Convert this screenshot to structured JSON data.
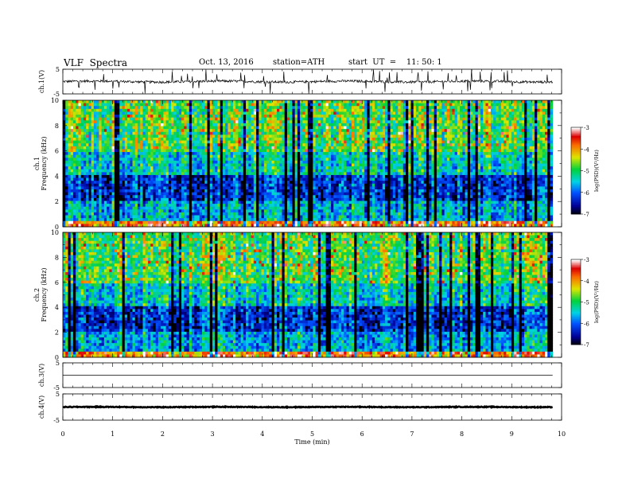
{
  "header": {
    "title": "VLF  Spectra",
    "date": "Oct. 13, 2016",
    "station": "station=ATH",
    "start": "start  UT  =    11: 50: 1"
  },
  "chart_data": [
    {
      "type": "line",
      "id": "ch1-waveform",
      "ylabel": "ch.1(V)",
      "ylim": [
        -5,
        5
      ],
      "y_ticks": [
        "5",
        "-5"
      ],
      "xlim": [
        0,
        10
      ],
      "baseline": 0,
      "noise_amplitude": 0.5,
      "series_end": 9.82
    },
    {
      "type": "heatmap",
      "id": "ch1-spectrogram",
      "ylabel": "ch.1\nFrequency  (kHz)",
      "ylabel_lines": [
        "ch.1",
        "Frequency  (kHz)"
      ],
      "ylim": [
        0,
        10
      ],
      "y_ticks": [
        "0",
        "2",
        "4",
        "6",
        "8",
        "10"
      ],
      "xlim": [
        0,
        10
      ],
      "colorbar": {
        "label": "log(PSD)(V²/Hz)",
        "ticks": [
          "-3",
          "-4",
          "-5",
          "-6",
          "-7"
        ],
        "range": [
          -7,
          -3
        ]
      }
    },
    {
      "type": "heatmap",
      "id": "ch2-spectrogram",
      "ylabel": "ch.2\nFrequency  (kHz)",
      "ylabel_lines": [
        "ch.2",
        "Frequency  (kHz)"
      ],
      "ylim": [
        0,
        10
      ],
      "y_ticks": [
        "0",
        "2",
        "4",
        "6",
        "8",
        "10"
      ],
      "xlim": [
        0,
        10
      ],
      "colorbar": {
        "label": "log(PSD)(V²/Hz)",
        "ticks": [
          "-3",
          "-4",
          "-5",
          "-6",
          "-7"
        ],
        "range": [
          -7,
          -3
        ]
      }
    },
    {
      "type": "line",
      "id": "ch3-waveform",
      "ylabel": "ch.3(V)",
      "ylim": [
        -5,
        5
      ],
      "y_ticks": [
        "5",
        "-5"
      ],
      "xlim": [
        0,
        10
      ],
      "baseline": 0,
      "noise_amplitude": 0.0,
      "series_end": 9.82
    },
    {
      "type": "line",
      "id": "ch4-waveform",
      "ylabel": "ch.4(V)",
      "ylim": [
        -5,
        5
      ],
      "y_ticks": [
        "5",
        "-5"
      ],
      "xlim": [
        0,
        10
      ],
      "baseline": 0,
      "noise_amplitude": 0.15,
      "series_end": 9.82
    }
  ],
  "x_axis": {
    "label": "Time  (min)",
    "ticks": [
      "0",
      "1",
      "2",
      "3",
      "4",
      "5",
      "6",
      "7",
      "8",
      "9",
      "10"
    ]
  }
}
